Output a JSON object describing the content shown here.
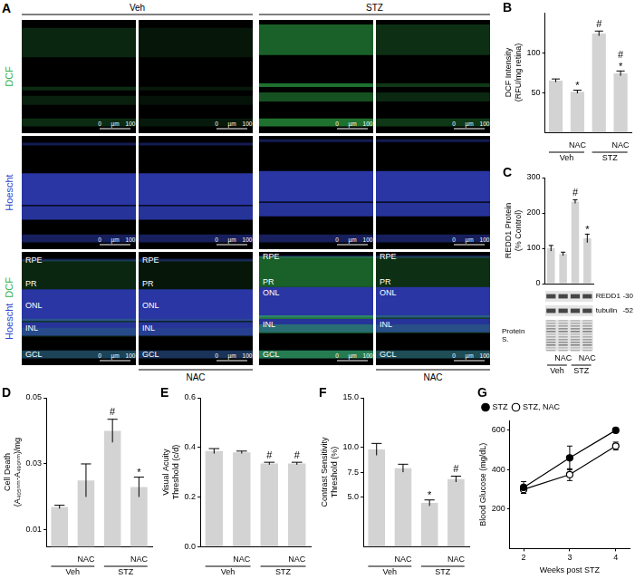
{
  "image_panel": {
    "panel_label": "A",
    "groups": [
      "Veh",
      "STZ"
    ],
    "rows": [
      {
        "labels": [
          {
            "text": "DCF",
            "color": "#2fb34a"
          }
        ]
      },
      {
        "labels": [
          {
            "text": "Hoescht",
            "color": "#3344cc"
          }
        ]
      },
      {
        "labels": [
          {
            "text": "DCF",
            "color": "#2fb34a"
          },
          {
            "text": "Hoescht",
            "color": "#3344cc"
          }
        ]
      }
    ],
    "treatment": [
      null,
      "NAC",
      null,
      "NAC"
    ],
    "layers": [
      [
        "RPE",
        "PR",
        "ONL",
        "INL",
        "GCL"
      ],
      [
        "RPE",
        "PR",
        "ONL",
        "INL",
        "GCL"
      ],
      [
        "RPE",
        "PR",
        "ONL",
        "INL",
        "GCL"
      ],
      [
        "RPE",
        "PR",
        "ONL",
        "INL",
        "GCL"
      ]
    ],
    "scale_bar": [
      "0",
      "µm",
      "100"
    ]
  },
  "chart_data": [
    {
      "type": "bar",
      "panel_label": "B",
      "y_label": [
        "DCF Intensity",
        "(RFU/mg retina)"
      ],
      "categories": [
        null,
        "NAC",
        null,
        "NAC"
      ],
      "groups": [
        "Veh",
        "Veh",
        "STZ",
        "STZ"
      ],
      "values": [
        65,
        51,
        124,
        74
      ],
      "errors": [
        2,
        2,
        3,
        3
      ],
      "annotations": [
        [],
        [
          "*"
        ],
        [
          "#"
        ],
        [
          "#",
          "*"
        ]
      ],
      "color": "#d3d3d3",
      "ylim": [
        0,
        150
      ],
      "yticks": [
        50,
        100
      ],
      "grid": false
    },
    {
      "type": "bar",
      "panel_label": "C",
      "y_label": [
        "REDD1 Protein",
        "(% Control)"
      ],
      "categories": [
        null,
        "NAC",
        null,
        "NAC"
      ],
      "groups": [
        "Veh",
        "Veh",
        "STZ",
        "STZ"
      ],
      "values": [
        100,
        84,
        232,
        128
      ],
      "errors": [
        8,
        5,
        5,
        12
      ],
      "annotations": [
        [],
        [],
        [
          "#"
        ],
        [
          "*"
        ]
      ],
      "color": "#d3d3d3",
      "ylim": [
        0,
        300
      ],
      "yticks": [
        0,
        100,
        200,
        300
      ],
      "grid": false,
      "blot": {
        "rows": [
          {
            "label": "REDD1",
            "ladder": "-30"
          },
          {
            "label": "tubulin",
            "ladder": "-52"
          },
          {
            "label": "Protein S."
          }
        ]
      }
    },
    {
      "type": "bar",
      "panel_label": "D",
      "y_label": [
        "Cell Death",
        "(A₄₀₅ₙₘ-A₄₉₀ₙₘ)/mg"
      ],
      "categories": [
        null,
        "NAC",
        null,
        "NAC"
      ],
      "groups": [
        "Veh",
        "Veh",
        "STZ",
        "STZ"
      ],
      "values": [
        0.017,
        0.025,
        0.04,
        0.023
      ],
      "errors": [
        0.0005,
        0.005,
        0.0035,
        0.003
      ],
      "annotations": [
        [],
        [],
        [
          "#"
        ],
        [
          "*"
        ]
      ],
      "color": "#d3d3d3",
      "ylim": [
        0.005,
        0.05
      ],
      "yticks": [
        0.01,
        0.03,
        0.05
      ],
      "grid": false
    },
    {
      "type": "bar",
      "panel_label": "E",
      "y_label": [
        "Visual Acuity",
        "Threshold (c/d)"
      ],
      "categories": [
        null,
        "NAC",
        null,
        "NAC"
      ],
      "groups": [
        "Veh",
        "Veh",
        "STZ",
        "STZ"
      ],
      "values": [
        0.385,
        0.38,
        0.335,
        0.335
      ],
      "errors": [
        0.01,
        0.005,
        0.005,
        0.005
      ],
      "annotations": [
        [],
        [],
        [
          "#"
        ],
        [
          "#"
        ]
      ],
      "color": "#d3d3d3",
      "ylim": [
        0,
        0.6
      ],
      "yticks": [
        {
          "value": 0,
          "label": "0.0"
        },
        0.2,
        0.4,
        0.6
      ],
      "grid": false
    },
    {
      "type": "bar",
      "panel_label": "F",
      "y_label": [
        "Contrast Sensitivity",
        "Threshold (%)"
      ],
      "categories": [
        null,
        "NAC",
        null,
        "NAC"
      ],
      "groups": [
        "Veh",
        "Veh",
        "STZ",
        "STZ"
      ],
      "values": [
        9.8,
        7.9,
        4.4,
        6.8
      ],
      "errors": [
        0.6,
        0.4,
        0.3,
        0.3
      ],
      "annotations": [
        [],
        [],
        [
          "*"
        ],
        [
          "#"
        ]
      ],
      "color": "#d3d3d3",
      "ylim": [
        0,
        15
      ],
      "yticks": [
        {
          "value": 5,
          "label": "5.0"
        },
        7.5,
        {
          "value": 10,
          "label": "10.0"
        },
        {
          "value": 15,
          "label": "15.0"
        }
      ],
      "grid": false
    },
    {
      "type": "line",
      "panel_label": "G",
      "x_label": "Weeks post STZ",
      "y_label": "Blood Glucose (mg/dL)",
      "x": [
        2,
        3,
        4
      ],
      "series": [
        {
          "name": "STZ",
          "color": "#000000",
          "marker": "circle",
          "values": [
            310,
            460,
            600
          ],
          "errors": [
            30,
            60,
            5
          ]
        },
        {
          "name": "STZ, NAC",
          "color": "#000000",
          "marker": "open_circle",
          "values": [
            300,
            375,
            520
          ],
          "errors": [
            20,
            30,
            20
          ]
        }
      ],
      "xlim": [
        1.7,
        4.3
      ],
      "xticks": [
        2,
        3,
        4
      ],
      "ylim": [
        0,
        650
      ],
      "yticks": [
        200,
        400,
        600
      ],
      "legend": "upper left",
      "grid": false
    }
  ]
}
